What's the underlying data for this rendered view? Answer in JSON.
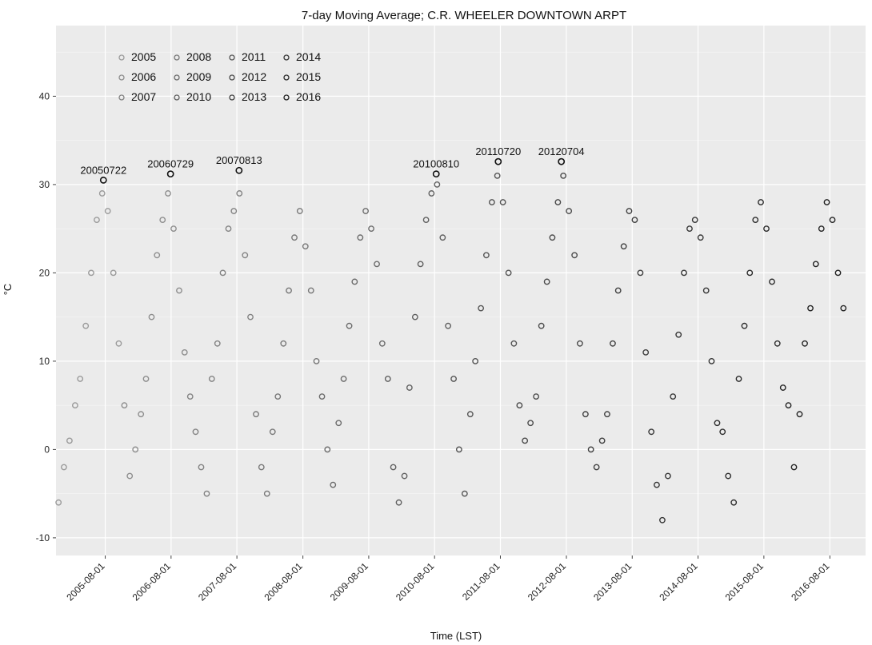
{
  "chart_data": {
    "type": "scatter",
    "title": "7-day Moving Average; C.R. WHEELER DOWNTOWN ARPT",
    "xlabel": "Time (LST)",
    "ylabel": "°C",
    "xlim": [
      "2004-11-01",
      "2017-02-15"
    ],
    "ylim": [
      -12,
      48
    ],
    "y_ticks": [
      -10,
      0,
      10,
      20,
      30,
      40
    ],
    "x_ticks": [
      "2005-08-01",
      "2006-08-01",
      "2007-08-01",
      "2008-08-01",
      "2009-08-01",
      "2010-08-01",
      "2011-08-01",
      "2012-08-01",
      "2013-08-01",
      "2014-08-01",
      "2015-08-01",
      "2016-08-01"
    ],
    "grid": true,
    "legend_placement": "top-left",
    "legend": [
      "2005",
      "2008",
      "2011",
      "2014",
      "2006",
      "2009",
      "2012",
      "2015",
      "2007",
      "2010",
      "2013",
      "2016"
    ],
    "series": [
      {
        "name": "2005",
        "color": "#9a9a9a",
        "x": [
          "2004-11-15",
          "2004-12-15",
          "2005-01-15",
          "2005-02-15",
          "2005-03-15",
          "2005-04-15",
          "2005-05-15",
          "2005-06-15",
          "2005-07-15",
          "2005-08-15",
          "2005-09-15",
          "2005-10-15"
        ],
        "y": [
          -6,
          -2,
          1,
          5,
          8,
          14,
          20,
          26,
          29,
          27,
          20,
          12
        ]
      },
      {
        "name": "2006",
        "color": "#8d8d8d",
        "x": [
          "2005-11-15",
          "2005-12-15",
          "2006-01-15",
          "2006-02-15",
          "2006-03-15",
          "2006-04-15",
          "2006-05-15",
          "2006-06-15",
          "2006-07-15",
          "2006-08-15",
          "2006-09-15",
          "2006-10-15"
        ],
        "y": [
          5,
          -3,
          0,
          4,
          8,
          15,
          22,
          26,
          29,
          25,
          18,
          11
        ]
      },
      {
        "name": "2007",
        "color": "#828282",
        "x": [
          "2006-11-15",
          "2006-12-15",
          "2007-01-15",
          "2007-02-15",
          "2007-03-15",
          "2007-04-15",
          "2007-05-15",
          "2007-06-15",
          "2007-07-15",
          "2007-08-15",
          "2007-09-15",
          "2007-10-15"
        ],
        "y": [
          6,
          2,
          -2,
          -5,
          8,
          12,
          20,
          25,
          27,
          29,
          22,
          15
        ]
      },
      {
        "name": "2008",
        "color": "#777777",
        "x": [
          "2007-11-15",
          "2007-12-15",
          "2008-01-15",
          "2008-02-15",
          "2008-03-15",
          "2008-04-15",
          "2008-05-15",
          "2008-06-15",
          "2008-07-15",
          "2008-08-15",
          "2008-09-15",
          "2008-10-15"
        ],
        "y": [
          4,
          -2,
          -5,
          2,
          6,
          12,
          18,
          24,
          27,
          23,
          18,
          10
        ]
      },
      {
        "name": "2009",
        "color": "#6b6b6b",
        "x": [
          "2008-11-15",
          "2008-12-15",
          "2009-01-15",
          "2009-02-15",
          "2009-03-15",
          "2009-04-15",
          "2009-05-15",
          "2009-06-15",
          "2009-07-15",
          "2009-08-15",
          "2009-09-15",
          "2009-10-15"
        ],
        "y": [
          6,
          0,
          -4,
          3,
          8,
          14,
          19,
          24,
          27,
          25,
          21,
          12
        ]
      },
      {
        "name": "2010",
        "color": "#5f5f5f",
        "x": [
          "2009-11-15",
          "2009-12-15",
          "2010-01-15",
          "2010-02-15",
          "2010-03-15",
          "2010-04-15",
          "2010-05-15",
          "2010-06-15",
          "2010-07-15",
          "2010-08-15",
          "2010-09-15",
          "2010-10-15"
        ],
        "y": [
          8,
          -2,
          -6,
          -3,
          7,
          15,
          21,
          26,
          29,
          30,
          24,
          14
        ]
      },
      {
        "name": "2011",
        "color": "#545454",
        "x": [
          "2010-11-15",
          "2010-12-15",
          "2011-01-15",
          "2011-02-15",
          "2011-03-15",
          "2011-04-15",
          "2011-05-15",
          "2011-06-15",
          "2011-07-15",
          "2011-08-15",
          "2011-09-15",
          "2011-10-15"
        ],
        "y": [
          8,
          0,
          -5,
          4,
          10,
          16,
          22,
          28,
          31,
          28,
          20,
          12
        ]
      },
      {
        "name": "2012",
        "color": "#4a4a4a",
        "x": [
          "2011-11-15",
          "2011-12-15",
          "2012-01-15",
          "2012-02-15",
          "2012-03-15",
          "2012-04-15",
          "2012-05-15",
          "2012-06-15",
          "2012-07-15",
          "2012-08-15",
          "2012-09-15",
          "2012-10-15"
        ],
        "y": [
          5,
          1,
          3,
          6,
          14,
          19,
          24,
          28,
          31,
          27,
          22,
          12
        ]
      },
      {
        "name": "2013",
        "color": "#3f3f3f",
        "x": [
          "2012-11-15",
          "2012-12-15",
          "2013-01-15",
          "2013-02-15",
          "2013-03-15",
          "2013-04-15",
          "2013-05-15",
          "2013-06-15",
          "2013-07-15",
          "2013-08-15",
          "2013-09-15",
          "2013-10-15"
        ],
        "y": [
          4,
          0,
          -2,
          1,
          4,
          12,
          18,
          23,
          27,
          26,
          20,
          11
        ]
      },
      {
        "name": "2014",
        "color": "#353535",
        "x": [
          "2013-11-15",
          "2013-12-15",
          "2014-01-15",
          "2014-02-15",
          "2014-03-15",
          "2014-04-15",
          "2014-05-15",
          "2014-06-15",
          "2014-07-15",
          "2014-08-15",
          "2014-09-15",
          "2014-10-15"
        ],
        "y": [
          2,
          -4,
          -8,
          -3,
          6,
          13,
          20,
          25,
          26,
          24,
          18,
          10
        ]
      },
      {
        "name": "2015",
        "color": "#2b2b2b",
        "x": [
          "2014-11-15",
          "2014-12-15",
          "2015-01-15",
          "2015-02-15",
          "2015-03-15",
          "2015-04-15",
          "2015-05-15",
          "2015-06-15",
          "2015-07-15",
          "2015-08-15",
          "2015-09-15",
          "2015-10-15"
        ],
        "y": [
          3,
          2,
          -3,
          -6,
          8,
          14,
          20,
          26,
          28,
          25,
          19,
          12
        ]
      },
      {
        "name": "2016",
        "color": "#222222",
        "x": [
          "2015-11-15",
          "2015-12-15",
          "2016-01-15",
          "2016-02-15",
          "2016-03-15",
          "2016-04-15",
          "2016-05-15",
          "2016-06-15",
          "2016-07-15",
          "2016-08-15",
          "2016-09-15",
          "2016-10-15"
        ],
        "y": [
          7,
          5,
          -2,
          4,
          12,
          16,
          21,
          25,
          28,
          26,
          20,
          16
        ]
      }
    ],
    "annotations": [
      {
        "label": "20050722",
        "x": "2005-07-22",
        "y": 30.5
      },
      {
        "label": "20060729",
        "x": "2006-07-29",
        "y": 31.2
      },
      {
        "label": "20070813",
        "x": "2007-08-13",
        "y": 31.6
      },
      {
        "label": "20100810",
        "x": "2010-08-10",
        "y": 31.2
      },
      {
        "label": "20110720",
        "x": "2011-07-20",
        "y": 32.6
      },
      {
        "label": "20120704",
        "x": "2012-07-04",
        "y": 32.6
      }
    ]
  }
}
